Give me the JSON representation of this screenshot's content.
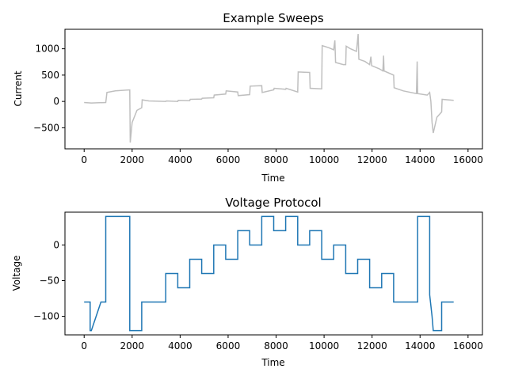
{
  "chart_data": [
    {
      "type": "line",
      "title": "Example Sweeps",
      "xlabel": "Time",
      "ylabel": "Current",
      "xlim": [
        -800,
        16600
      ],
      "ylim": [
        -900,
        1370
      ],
      "xticks": [
        0,
        2000,
        4000,
        6000,
        8000,
        10000,
        12000,
        14000,
        16000
      ],
      "yticks": [
        -500,
        0,
        500,
        1000
      ],
      "grid": false,
      "series": [
        {
          "color": "#bfbfbf",
          "points": [
            [
              0,
              -20
            ],
            [
              300,
              -30
            ],
            [
              900,
              -20
            ],
            [
              950,
              170
            ],
            [
              1300,
              200
            ],
            [
              1900,
              220
            ],
            [
              1920,
              -780
            ],
            [
              2000,
              -400
            ],
            [
              2200,
              -170
            ],
            [
              2400,
              -120
            ],
            [
              2420,
              30
            ],
            [
              2700,
              10
            ],
            [
              3000,
              5
            ],
            [
              3400,
              0
            ],
            [
              3420,
              10
            ],
            [
              3900,
              0
            ],
            [
              3920,
              20
            ],
            [
              4400,
              15
            ],
            [
              4420,
              40
            ],
            [
              4900,
              45
            ],
            [
              4920,
              60
            ],
            [
              5400,
              70
            ],
            [
              5420,
              120
            ],
            [
              5900,
              140
            ],
            [
              5920,
              200
            ],
            [
              6400,
              180
            ],
            [
              6420,
              110
            ],
            [
              6900,
              130
            ],
            [
              6920,
              290
            ],
            [
              7400,
              300
            ],
            [
              7420,
              170
            ],
            [
              7900,
              220
            ],
            [
              7920,
              250
            ],
            [
              8400,
              230
            ],
            [
              8420,
              250
            ],
            [
              8900,
              180
            ],
            [
              8920,
              560
            ],
            [
              9400,
              550
            ],
            [
              9420,
              250
            ],
            [
              9900,
              240
            ],
            [
              9920,
              1060
            ],
            [
              10200,
              1020
            ],
            [
              10400,
              980
            ],
            [
              10450,
              1160
            ],
            [
              10480,
              740
            ],
            [
              10800,
              700
            ],
            [
              10900,
              700
            ],
            [
              10920,
              1050
            ],
            [
              11100,
              1000
            ],
            [
              11350,
              950
            ],
            [
              11420,
              1280
            ],
            [
              11450,
              800
            ],
            [
              11700,
              760
            ],
            [
              11900,
              700
            ],
            [
              11950,
              850
            ],
            [
              11980,
              680
            ],
            [
              12300,
              620
            ],
            [
              12450,
              580
            ],
            [
              12480,
              870
            ],
            [
              12500,
              580
            ],
            [
              12900,
              500
            ],
            [
              12920,
              260
            ],
            [
              13300,
              200
            ],
            [
              13850,
              150
            ],
            [
              13880,
              760
            ],
            [
              13900,
              150
            ],
            [
              14300,
              120
            ],
            [
              14400,
              170
            ],
            [
              14450,
              0
            ],
            [
              14500,
              -400
            ],
            [
              14550,
              -600
            ],
            [
              14700,
              -300
            ],
            [
              14900,
              -200
            ],
            [
              14920,
              40
            ],
            [
              15400,
              20
            ]
          ]
        }
      ]
    },
    {
      "type": "line",
      "title": "Voltage Protocol",
      "xlabel": "Time",
      "ylabel": "Voltage",
      "xlim": [
        -800,
        16600
      ],
      "ylim": [
        -126,
        46
      ],
      "xticks": [
        0,
        2000,
        4000,
        6000,
        8000,
        10000,
        12000,
        14000,
        16000
      ],
      "yticks": [
        -100,
        -50,
        0
      ],
      "grid": false,
      "series": [
        {
          "color": "#1f77b4",
          "points": [
            [
              0,
              -80
            ],
            [
              250,
              -80
            ],
            [
              250,
              -120
            ],
            [
              300,
              -120
            ],
            [
              700,
              -80
            ],
            [
              900,
              -80
            ],
            [
              900,
              40
            ],
            [
              1900,
              40
            ],
            [
              1900,
              -120
            ],
            [
              2400,
              -120
            ],
            [
              2400,
              -80
            ],
            [
              3400,
              -80
            ],
            [
              3400,
              -40
            ],
            [
              3900,
              -40
            ],
            [
              3900,
              -60
            ],
            [
              4400,
              -60
            ],
            [
              4400,
              -20
            ],
            [
              4900,
              -20
            ],
            [
              4900,
              -40
            ],
            [
              5400,
              -40
            ],
            [
              5400,
              0
            ],
            [
              5900,
              0
            ],
            [
              5900,
              -20
            ],
            [
              6400,
              -20
            ],
            [
              6400,
              20
            ],
            [
              6900,
              20
            ],
            [
              6900,
              0
            ],
            [
              7400,
              0
            ],
            [
              7400,
              40
            ],
            [
              7900,
              40
            ],
            [
              7900,
              20
            ],
            [
              8400,
              20
            ],
            [
              8400,
              40
            ],
            [
              8900,
              40
            ],
            [
              8900,
              0
            ],
            [
              9400,
              0
            ],
            [
              9400,
              20
            ],
            [
              9900,
              20
            ],
            [
              9900,
              -20
            ],
            [
              10400,
              -20
            ],
            [
              10400,
              0
            ],
            [
              10900,
              0
            ],
            [
              10900,
              -40
            ],
            [
              11400,
              -40
            ],
            [
              11400,
              -20
            ],
            [
              11900,
              -20
            ],
            [
              11900,
              -60
            ],
            [
              12400,
              -60
            ],
            [
              12400,
              -40
            ],
            [
              12900,
              -40
            ],
            [
              12900,
              -80
            ],
            [
              13900,
              -80
            ],
            [
              13900,
              40
            ],
            [
              14400,
              40
            ],
            [
              14400,
              -70
            ],
            [
              14500,
              -100
            ],
            [
              14550,
              -120
            ],
            [
              14900,
              -120
            ],
            [
              14900,
              -80
            ],
            [
              15400,
              -80
            ]
          ]
        }
      ]
    }
  ]
}
